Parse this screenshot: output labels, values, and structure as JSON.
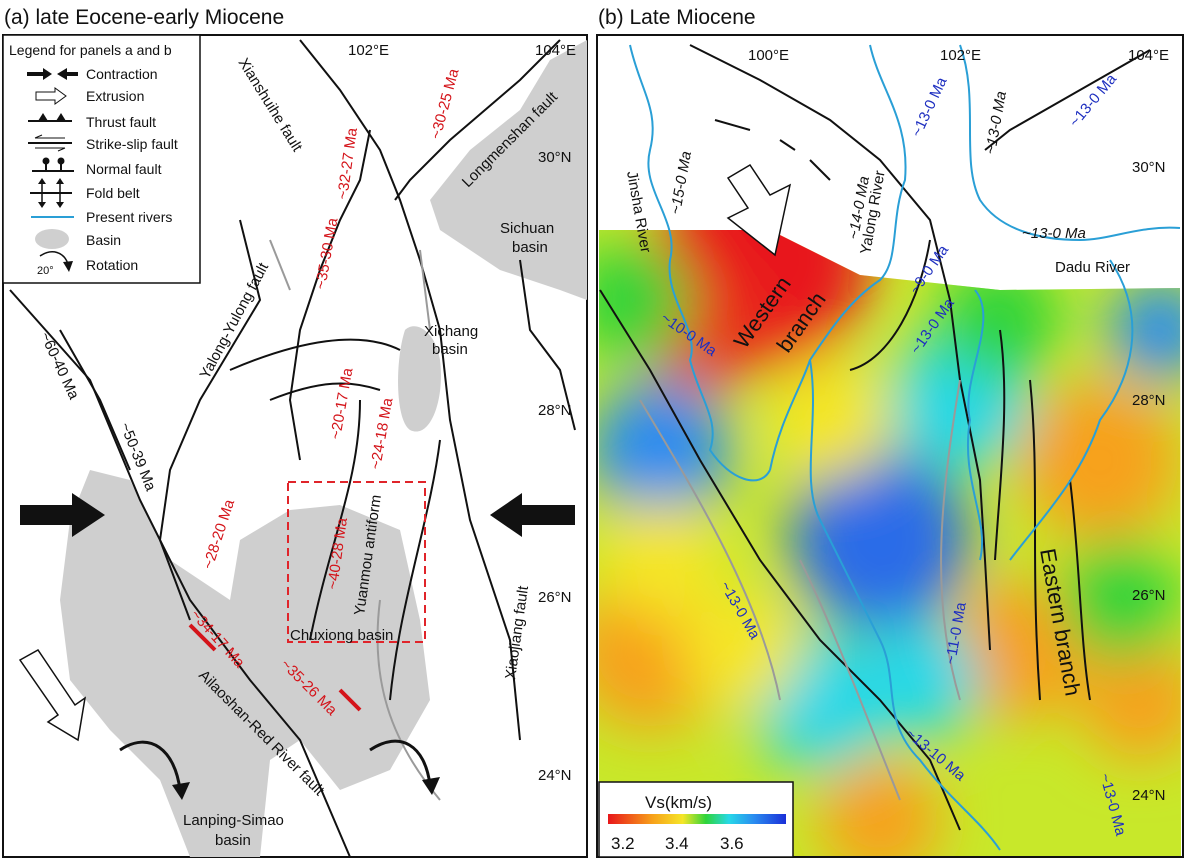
{
  "panel_a": {
    "title": "(a) late Eocene-early Miocene",
    "legend": {
      "title": "Legend for panels a and b",
      "items": [
        {
          "icon": "contraction-arrows-icon",
          "label": "Contraction"
        },
        {
          "icon": "extrusion-arrow-icon",
          "label": "Extrusion"
        },
        {
          "icon": "thrust-fault-icon",
          "label": "Thrust fault"
        },
        {
          "icon": "strike-slip-fault-icon",
          "label": "Strike-slip fault"
        },
        {
          "icon": "normal-fault-icon",
          "label": "Normal fault"
        },
        {
          "icon": "fold-belt-icon",
          "label": "Fold belt"
        },
        {
          "icon": "river-line-icon",
          "label": "Present rivers"
        },
        {
          "icon": "basin-shape-icon",
          "label": "Basin"
        },
        {
          "icon": "rotation-arrow-icon",
          "label": "Rotation"
        }
      ],
      "rotation_value": "20°"
    },
    "coords": {
      "lon1": "102°E",
      "lon2": "104°E",
      "lat30": "30°N",
      "lat28": "28°N",
      "lat26": "26°N",
      "lat24": "24°N"
    },
    "places": {
      "xianshuihe": "Xianshuihe fault",
      "longmenshan": "Longmenshan fault",
      "sichuan1": "Sichuan",
      "sichuan2": "basin",
      "yalong_yulong": "Yalong-Yulong fault",
      "xichang1": "Xichang",
      "xichang2": "basin",
      "yuanmou": "Yuanmou antiform",
      "chuxiong": "Chuxiong basin",
      "xiaojiang": "Xiaojiang fault",
      "ailaoshan": "Ailaoshan-Red River fault",
      "lanping1": "Lanping-Simao",
      "lanping2": "basin"
    },
    "ages_red": [
      "~32-27 Ma",
      "~30-25 Ma",
      "~35-30 Ma",
      "~20-17 Ma",
      "~24-18 Ma",
      "~28-20 Ma",
      "~40-28 Ma",
      "~34-17 Ma",
      "~35-26 Ma"
    ],
    "ages_black": [
      "~60-40 Ma",
      "~50-39 Ma"
    ],
    "colors": {
      "age_red": "#d4141a",
      "basin": "#cfcfcf",
      "box": "#e0242a"
    }
  },
  "panel_b": {
    "title": "(b) Late Miocene",
    "coords": {
      "lon0": "100°E",
      "lon1": "102°E",
      "lon2": "104°E",
      "lat30": "30°N",
      "lat28": "28°N",
      "lat26": "26°N",
      "lat24": "24°N"
    },
    "rivers": {
      "jinsha": "Jinsha River",
      "yalong": "Yalong River",
      "dadu": "Dadu River"
    },
    "branches": {
      "western1": "Western",
      "western2": "branch",
      "eastern": "Eastern branch"
    },
    "ages_black": [
      "~15-0 Ma",
      "~14-0 Ma",
      "~13-0 Ma",
      "~13-0 Ma"
    ],
    "ages_blue": [
      "~13-0 Ma",
      "~13-0 Ma",
      "~9-0 Ma",
      "~13-0 Ma",
      "~10-0 Ma",
      "~13-0 Ma",
      "~11-0 Ma",
      "~13-10 Ma",
      "~13-0 Ma"
    ],
    "colorbar": {
      "label": "Vs(km/s)",
      "ticks": [
        "3.2",
        "3.4",
        "3.6"
      ],
      "range": [
        3.1,
        3.8
      ],
      "colors": [
        "#e8161a",
        "#f7a11a",
        "#f5e628",
        "#2fd43a",
        "#27d8e8",
        "#2a8cf0",
        "#1a2fd8"
      ]
    },
    "colors": {
      "river": "#2a9fd6",
      "age_blue": "#1e2fc0"
    }
  }
}
